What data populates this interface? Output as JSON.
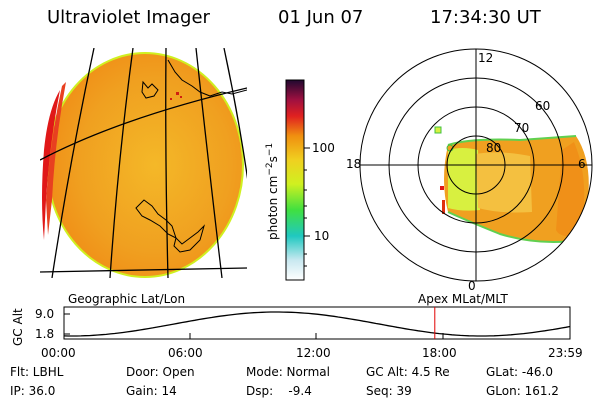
{
  "header": {
    "instrument": "Ultraviolet Imager",
    "date": "01 Jun 07",
    "time": "17:34:30 UT"
  },
  "colorbar": {
    "label_html": "photon cm<tspan baseline-shift=\"super\" font-size=\"9\">−2</tspan>s<tspan baseline-shift=\"super\" font-size=\"9\">−1</tspan>",
    "ticks": [
      "100",
      "10"
    ]
  },
  "polar": {
    "ring_labels": [
      "60",
      "70",
      "80"
    ],
    "mlt_labels": {
      "top": "12",
      "left": "18",
      "right": "6",
      "bottom": "0"
    }
  },
  "map_labels": {
    "left": "Geographic Lat/Lon",
    "right": "Apex MLat/MLT"
  },
  "timeline": {
    "ylabel": "GC Alt",
    "yticks": [
      "9.0",
      "1.8"
    ],
    "xticks": [
      "00:00",
      "06:00",
      "12:00",
      "18:00",
      "23:59"
    ],
    "marker_time": "17:34:30"
  },
  "info": {
    "flt": "Flt: LBHL",
    "ip": "IP: 36.0",
    "door": "Door: Open",
    "gain": "Gain: 14",
    "mode": "Mode: Normal",
    "dsp": "Dsp:    -9.4",
    "gcalt": "GC Alt: 4.5 Re",
    "seq": "Seq: 39",
    "glat": "GLat: -46.0",
    "glon": "GLon: 161.2"
  },
  "colors": {
    "disk_main": "#f0a020",
    "disk_limb": "#e01818",
    "grid": "#000000",
    "marker": "#e00000"
  }
}
